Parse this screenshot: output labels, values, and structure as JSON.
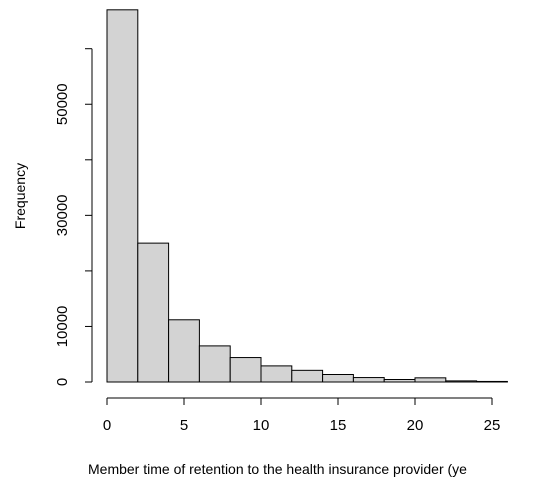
{
  "chart_data": {
    "type": "bar",
    "subtype": "histogram",
    "title": "",
    "xlabel": "Member time of retention to the health insurance provider (ye",
    "ylabel": "Frequency",
    "bin_width": 2,
    "bins": [
      {
        "start": 0,
        "end": 2,
        "count": 67000
      },
      {
        "start": 2,
        "end": 4,
        "count": 25000
      },
      {
        "start": 4,
        "end": 6,
        "count": 11200
      },
      {
        "start": 6,
        "end": 8,
        "count": 6500
      },
      {
        "start": 8,
        "end": 10,
        "count": 4400
      },
      {
        "start": 10,
        "end": 12,
        "count": 2900
      },
      {
        "start": 12,
        "end": 14,
        "count": 2100
      },
      {
        "start": 14,
        "end": 16,
        "count": 1350
      },
      {
        "start": 16,
        "end": 18,
        "count": 800
      },
      {
        "start": 18,
        "end": 20,
        "count": 450
      },
      {
        "start": 20,
        "end": 22,
        "count": 750
      },
      {
        "start": 22,
        "end": 24,
        "count": 200
      },
      {
        "start": 24,
        "end": 26,
        "count": 100
      }
    ],
    "x_ticks": [
      0,
      5,
      10,
      15,
      20,
      25
    ],
    "x_tick_labels": [
      "0",
      "5",
      "10",
      "15",
      "20",
      "25"
    ],
    "y_ticks": [
      0,
      10000,
      30000,
      50000
    ],
    "y_tick_labels": [
      "0",
      "10000",
      "30000",
      "50000"
    ],
    "xlim": [
      0,
      27
    ],
    "ylim": [
      0,
      67000
    ],
    "grid": false,
    "legend": "none",
    "colors": {
      "bar_fill": "#d3d3d3",
      "bar_stroke": "#000000",
      "axis": "#000000"
    }
  }
}
